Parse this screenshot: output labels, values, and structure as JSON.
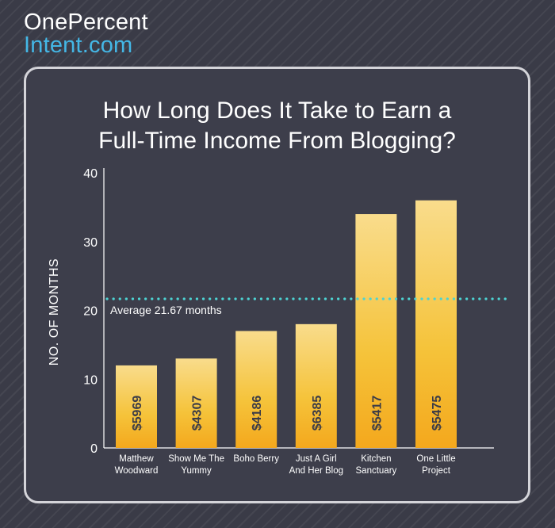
{
  "brand": {
    "line1": "OnePercent",
    "line2": "Intent.com"
  },
  "chart_data": {
    "type": "bar",
    "title_lines": [
      "How Long Does It Take to Earn a",
      "Full-Time Income From Blogging?"
    ],
    "ylabel": "NO. OF MONTHS",
    "ylim": [
      0,
      40
    ],
    "yticks": [
      0,
      10,
      20,
      30,
      40
    ],
    "categories": [
      [
        "Matthew",
        "Woodward"
      ],
      [
        "Show Me The",
        "Yummy"
      ],
      [
        "Boho Berry"
      ],
      [
        "Just A Girl",
        "And Her Blog"
      ],
      [
        "Kitchen",
        "Sanctuary"
      ],
      [
        "One Little",
        "Project"
      ]
    ],
    "values": [
      12,
      13,
      17,
      18,
      34,
      36
    ],
    "bar_labels": [
      "$5969",
      "$4307",
      "$4186",
      "$6385",
      "$5417",
      "$5475"
    ],
    "reference_line": {
      "value": 21.67,
      "label": "Average 21.67 months"
    },
    "grid": false,
    "colors": {
      "bar_top": "#f9dc8c",
      "bar_bottom": "#f4a81d",
      "reference": "#4dd3d3",
      "text": "#ffffff",
      "bar_label": "#3a3b47"
    }
  }
}
